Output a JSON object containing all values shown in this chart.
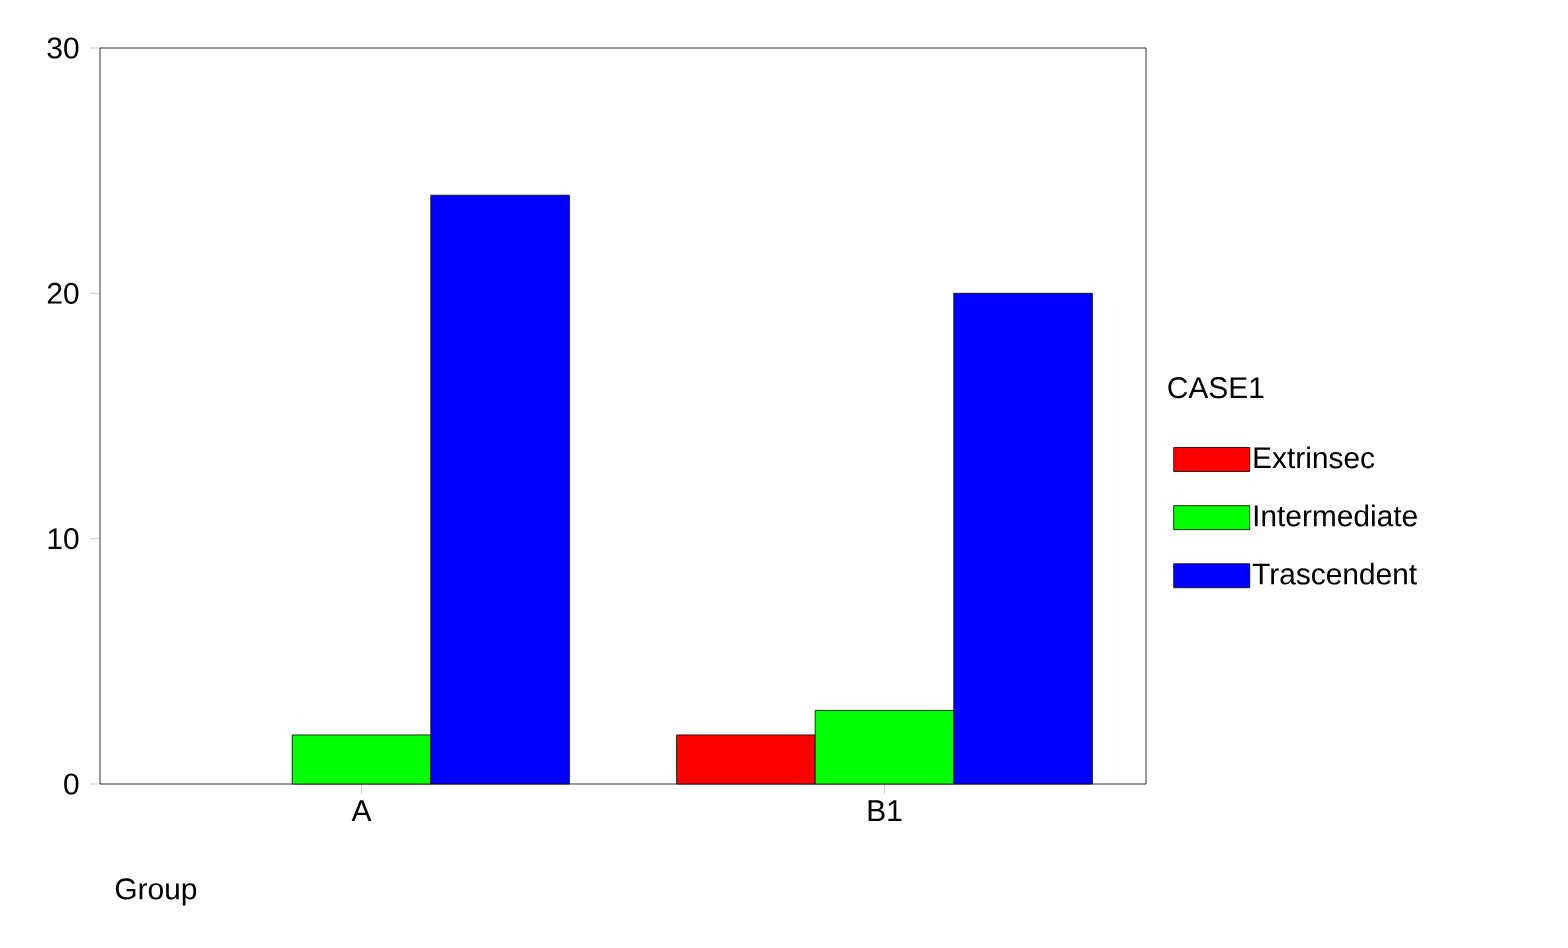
{
  "chart_data": {
    "type": "bar",
    "xlabel": "Group",
    "legend_title": "CASE1",
    "categories": [
      "A",
      "B1"
    ],
    "series": [
      {
        "name": "Extrinsec",
        "color": "#ff0000",
        "values": [
          null,
          2
        ]
      },
      {
        "name": "Intermediate",
        "color": "#00ff00",
        "values": [
          2,
          3
        ]
      },
      {
        "name": "Trascendent",
        "color": "#0000ff",
        "values": [
          24,
          20
        ]
      }
    ],
    "ylim": [
      0,
      30
    ],
    "yticks": [
      0,
      10,
      20,
      30
    ],
    "grid": false,
    "legend": "right"
  }
}
